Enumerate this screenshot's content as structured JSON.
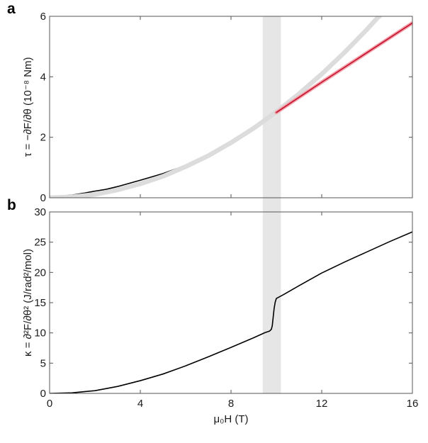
{
  "chart_data": [
    {
      "panel": "a",
      "type": "line",
      "ylabel": "τ = −∂F/∂θ  (10⁻⁸ Nm)",
      "xlim": [
        0,
        16
      ],
      "ylim": [
        0,
        6
      ],
      "yticks": [
        0,
        2,
        4,
        6
      ],
      "xticks": [
        0,
        4,
        8,
        12,
        16
      ],
      "shaded_band_x": [
        9.4,
        10.2
      ],
      "grid": false,
      "series": [
        {
          "style": "black-line",
          "color": "#000000",
          "points": [
            [
              0,
              0.05
            ],
            [
              0.5,
              0.06
            ],
            [
              1,
              0.09
            ],
            [
              1.5,
              0.15
            ],
            [
              2,
              0.22
            ],
            [
              2.5,
              0.28
            ],
            [
              3,
              0.37
            ],
            [
              4,
              0.58
            ],
            [
              5,
              0.8
            ],
            [
              6,
              1.07
            ],
            [
              7,
              1.38
            ],
            [
              8,
              1.76
            ],
            [
              9,
              2.25
            ],
            [
              9.5,
              2.52
            ],
            [
              10,
              2.78
            ]
          ]
        },
        {
          "style": "grey-band",
          "color": "#dcdcdc",
          "points": [
            [
              0,
              0
            ],
            [
              1,
              0.03
            ],
            [
              2,
              0.11
            ],
            [
              3,
              0.26
            ],
            [
              4,
              0.46
            ],
            [
              5,
              0.71
            ],
            [
              6,
              1.03
            ],
            [
              7,
              1.39
            ],
            [
              8,
              1.82
            ],
            [
              9,
              2.3
            ],
            [
              10,
              2.84
            ],
            [
              11,
              3.44
            ],
            [
              12,
              4.09
            ],
            [
              13,
              4.8
            ],
            [
              14,
              5.57
            ],
            [
              14.5,
              5.98
            ],
            [
              14.55,
              6.0
            ]
          ]
        },
        {
          "style": "red-line",
          "color": "#c8102e",
          "points": [
            [
              10,
              2.82
            ],
            [
              11,
              3.32
            ],
            [
              12,
              3.82
            ],
            [
              13,
              4.31
            ],
            [
              14,
              4.8
            ],
            [
              15,
              5.29
            ],
            [
              16,
              5.78
            ]
          ]
        }
      ]
    },
    {
      "panel": "b",
      "type": "line",
      "ylabel": "κ = ∂²F/∂θ²  (J/rad²/mol)",
      "xlabel": "μ₀H (T)",
      "xlim": [
        0,
        16
      ],
      "ylim": [
        0,
        30
      ],
      "yticks": [
        0,
        5,
        10,
        15,
        20,
        25,
        30
      ],
      "xticks": [
        0,
        4,
        8,
        12,
        16
      ],
      "shaded_band_x": [
        9.4,
        10.2
      ],
      "grid": false,
      "series": [
        {
          "style": "black-line",
          "color": "#000000",
          "points": [
            [
              0,
              0
            ],
            [
              1,
              0.1
            ],
            [
              2,
              0.45
            ],
            [
              3,
              1.15
            ],
            [
              4,
              2.1
            ],
            [
              5,
              3.2
            ],
            [
              6,
              4.55
            ],
            [
              7,
              6.05
            ],
            [
              8,
              7.6
            ],
            [
              9,
              9.2
            ],
            [
              9.5,
              10.05
            ],
            [
              9.7,
              10.3
            ],
            [
              9.78,
              10.6
            ],
            [
              9.82,
              11.2
            ],
            [
              9.86,
              12.6
            ],
            [
              9.9,
              14.0
            ],
            [
              9.95,
              15.1
            ],
            [
              10,
              15.7
            ],
            [
              10.3,
              16.3
            ],
            [
              11,
              17.8
            ],
            [
              12,
              19.9
            ],
            [
              13,
              21.7
            ],
            [
              14,
              23.4
            ],
            [
              15,
              25.1
            ],
            [
              16,
              26.7
            ]
          ]
        }
      ]
    }
  ],
  "tick_labels": {
    "a_y": [
      "0",
      "2",
      "4",
      "6"
    ],
    "b_y": [
      "0",
      "5",
      "10",
      "15",
      "20",
      "25",
      "30"
    ],
    "x": [
      "0",
      "4",
      "8",
      "12",
      "16"
    ]
  },
  "panel_a_letter": "a",
  "panel_b_letter": "b",
  "panel_a_ylabel": "τ = −∂F/∂θ  (10⁻⁸ Nm)",
  "panel_b_ylabel": "κ = ∂²F/∂θ²  (J/rad²/mol)",
  "xlabel": "μ₀H (T)"
}
